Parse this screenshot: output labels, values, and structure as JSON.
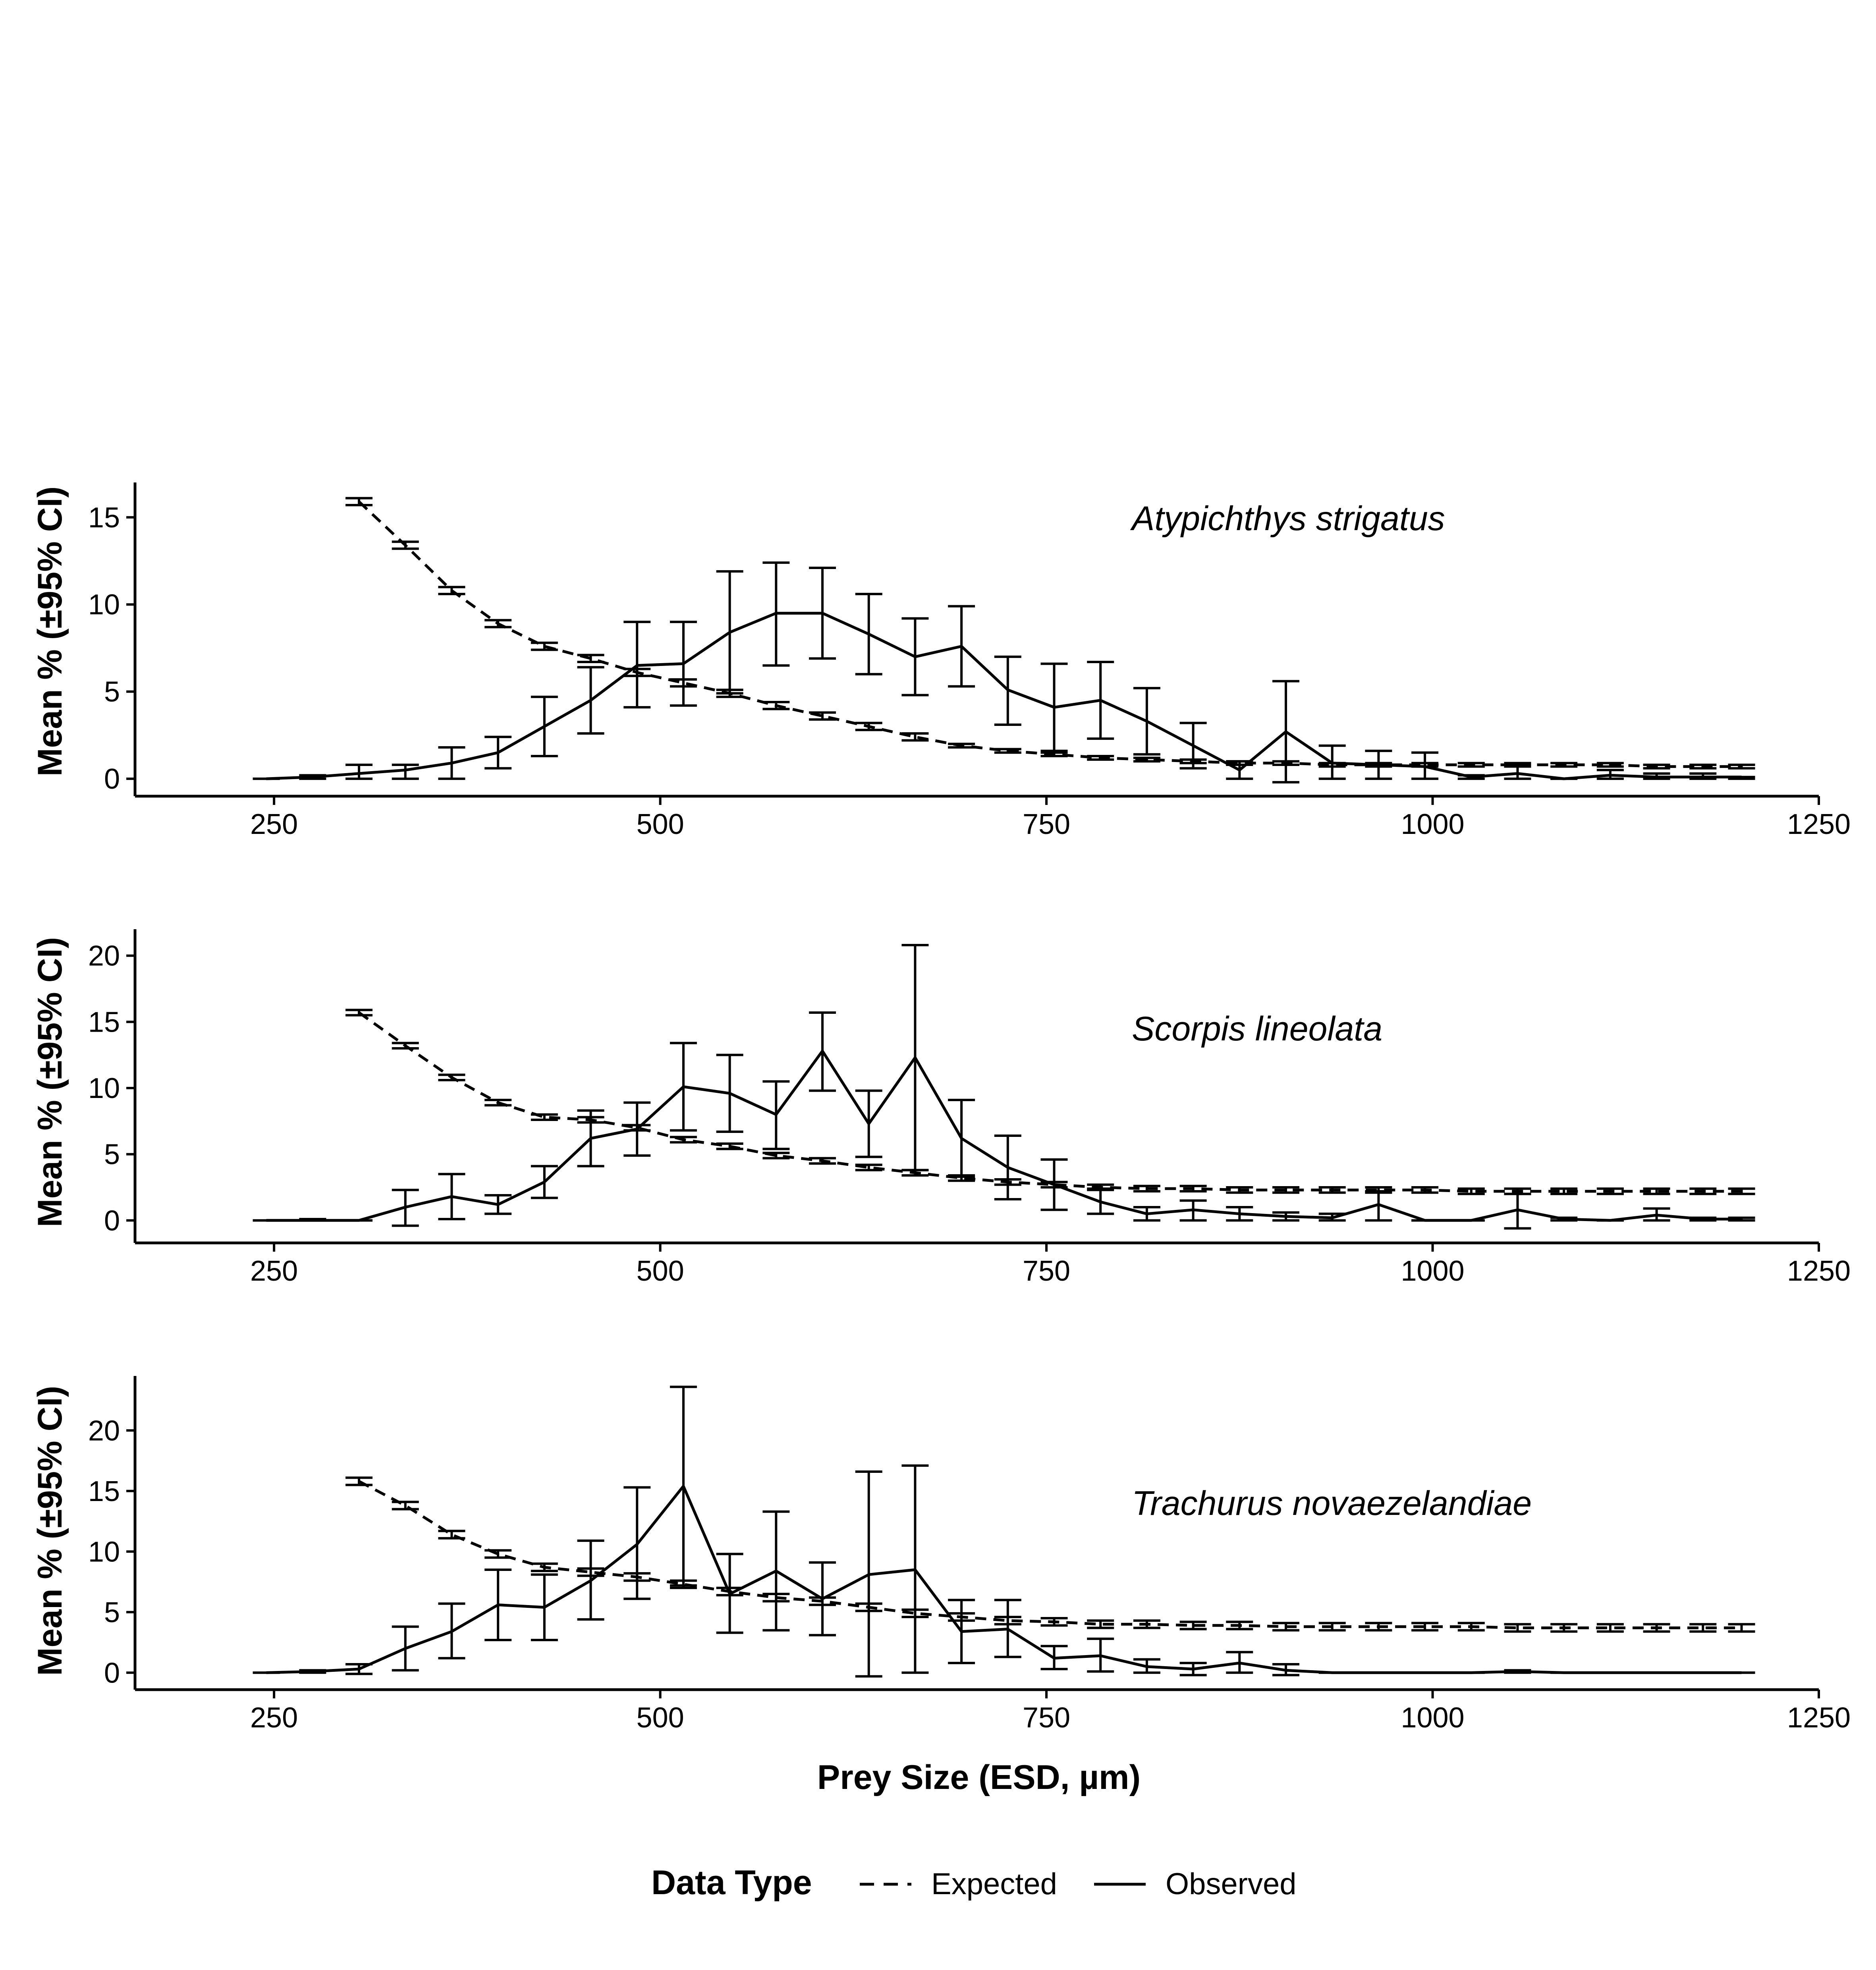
{
  "axis_titles": {
    "y": "Mean % (±95% CI)",
    "x": "Prey Size (ESD, µm)"
  },
  "legend": {
    "title": "Data Type",
    "items": [
      {
        "label": "Expected",
        "linetype": "dashed"
      },
      {
        "label": "Observed",
        "linetype": "solid"
      }
    ]
  },
  "chart_data": [
    {
      "type": "line",
      "title": "Atypichthys strigatus",
      "xlabel": "",
      "ylabel": "Mean % (±95% CI)",
      "xlim": [
        160,
        1250
      ],
      "ylim": [
        -1,
        17
      ],
      "x_ticks": [
        250,
        500,
        750,
        1000,
        1250
      ],
      "y_ticks": [
        0,
        5,
        10,
        15
      ],
      "grid": false,
      "series": [
        {
          "name": "Observed",
          "x": [
            245,
            275,
            305,
            335,
            365,
            395,
            425,
            455,
            485,
            515,
            545,
            575,
            605,
            635,
            665,
            695,
            725,
            755,
            785,
            815,
            845,
            875,
            905,
            935,
            965,
            995,
            1025,
            1055,
            1085,
            1115,
            1145,
            1175,
            1200
          ],
          "y": [
            0,
            0.1,
            0.3,
            0.5,
            0.9,
            1.5,
            3.0,
            4.5,
            6.5,
            6.6,
            8.4,
            9.5,
            9.5,
            8.3,
            7.0,
            7.6,
            5.1,
            4.1,
            4.5,
            3.3,
            1.9,
            0.5,
            2.7,
            0.9,
            0.8,
            0.7,
            0.1,
            0.3,
            0.0,
            0.2,
            0.1,
            0.1,
            0.1
          ],
          "lo": [
            0,
            0.0,
            0.0,
            0.0,
            0.0,
            0.6,
            1.3,
            2.6,
            4.1,
            4.2,
            4.9,
            6.5,
            6.9,
            6.0,
            4.8,
            5.3,
            3.1,
            1.6,
            2.3,
            1.4,
            0.6,
            0.0,
            -0.2,
            0.0,
            0.0,
            0.0,
            0.0,
            0.0,
            0.0,
            0.0,
            0.0,
            0.0,
            0.0
          ],
          "hi": [
            0,
            0.2,
            0.8,
            0.8,
            1.8,
            2.4,
            4.7,
            6.4,
            9.0,
            9.0,
            11.9,
            12.4,
            12.1,
            10.6,
            9.2,
            9.9,
            7.0,
            6.6,
            6.7,
            5.2,
            3.2,
            1.0,
            5.6,
            1.9,
            1.6,
            1.5,
            0.2,
            0.8,
            0.0,
            0.5,
            0.3,
            0.3,
            0.1
          ]
        },
        {
          "name": "Expected",
          "x": [
            305,
            335,
            365,
            395,
            425,
            455,
            485,
            515,
            545,
            575,
            605,
            635,
            665,
            695,
            725,
            755,
            785,
            815,
            845,
            875,
            905,
            935,
            965,
            995,
            1025,
            1055,
            1085,
            1115,
            1145,
            1175,
            1200
          ],
          "y": [
            15.9,
            13.4,
            10.8,
            8.9,
            7.6,
            6.9,
            6.1,
            5.5,
            4.9,
            4.2,
            3.6,
            3.0,
            2.4,
            1.9,
            1.6,
            1.4,
            1.2,
            1.1,
            1.0,
            0.9,
            0.9,
            0.8,
            0.8,
            0.8,
            0.8,
            0.8,
            0.8,
            0.8,
            0.7,
            0.7,
            0.7
          ],
          "lo": [
            15.7,
            13.2,
            10.6,
            8.7,
            7.4,
            6.7,
            5.9,
            5.3,
            4.7,
            4.0,
            3.4,
            2.8,
            2.2,
            1.8,
            1.5,
            1.3,
            1.1,
            1.0,
            0.9,
            0.8,
            0.8,
            0.7,
            0.7,
            0.7,
            0.7,
            0.7,
            0.7,
            0.7,
            0.6,
            0.6,
            0.6
          ],
          "hi": [
            16.1,
            13.6,
            11.0,
            9.1,
            7.8,
            7.1,
            6.3,
            5.7,
            5.1,
            4.4,
            3.8,
            3.2,
            2.6,
            2.0,
            1.7,
            1.5,
            1.3,
            1.2,
            1.1,
            1.0,
            1.0,
            0.9,
            0.9,
            0.9,
            0.9,
            0.9,
            0.9,
            0.9,
            0.8,
            0.8,
            0.8
          ]
        }
      ]
    },
    {
      "type": "line",
      "title": "Scorpis lineolata",
      "xlabel": "",
      "ylabel": "Mean % (±95% CI)",
      "xlim": [
        160,
        1250
      ],
      "ylim": [
        -1.7,
        22
      ],
      "x_ticks": [
        250,
        500,
        750,
        1000,
        1250
      ],
      "y_ticks": [
        0,
        5,
        10,
        15,
        20
      ],
      "grid": false,
      "series": [
        {
          "name": "Observed",
          "x": [
            245,
            275,
            305,
            335,
            365,
            395,
            425,
            455,
            485,
            515,
            545,
            575,
            605,
            635,
            665,
            695,
            725,
            755,
            785,
            815,
            845,
            875,
            905,
            935,
            965,
            995,
            1025,
            1055,
            1085,
            1115,
            1145,
            1175,
            1200
          ],
          "y": [
            0,
            0,
            0,
            1.0,
            1.8,
            1.2,
            2.9,
            6.2,
            6.9,
            10.1,
            9.6,
            8.0,
            12.8,
            7.3,
            12.3,
            6.2,
            4.0,
            2.7,
            1.4,
            0.5,
            0.8,
            0.5,
            0.3,
            0.2,
            1.2,
            0,
            0,
            0.8,
            0.1,
            0,
            0.4,
            0.1,
            0.1
          ],
          "lo": [
            0,
            0,
            0,
            -0.4,
            0.1,
            0.5,
            1.7,
            4.1,
            4.9,
            6.8,
            6.7,
            5.4,
            9.8,
            4.8,
            3.8,
            3.3,
            1.6,
            0.8,
            0.5,
            0.0,
            0.0,
            0.0,
            0.0,
            0.0,
            0.0,
            0,
            0,
            -0.6,
            0.0,
            0,
            0.0,
            0.0,
            0.0
          ],
          "hi": [
            0,
            0.1,
            0,
            2.3,
            3.5,
            1.9,
            4.1,
            8.3,
            8.9,
            13.4,
            12.5,
            10.5,
            15.7,
            9.8,
            20.8,
            9.1,
            6.4,
            4.6,
            2.4,
            1.0,
            1.5,
            1.0,
            0.6,
            0.5,
            2.2,
            0,
            0,
            2.0,
            0.2,
            0,
            0.9,
            0.2,
            0.2
          ]
        },
        {
          "name": "Expected",
          "x": [
            305,
            335,
            365,
            395,
            425,
            455,
            485,
            515,
            545,
            575,
            605,
            635,
            665,
            695,
            725,
            755,
            785,
            815,
            845,
            875,
            905,
            935,
            965,
            995,
            1025,
            1055,
            1085,
            1115,
            1145,
            1175,
            1200
          ],
          "y": [
            15.7,
            13.2,
            10.8,
            8.9,
            7.8,
            7.6,
            7.0,
            6.1,
            5.6,
            4.9,
            4.5,
            4.0,
            3.6,
            3.2,
            2.9,
            2.7,
            2.5,
            2.4,
            2.4,
            2.3,
            2.3,
            2.3,
            2.3,
            2.3,
            2.2,
            2.2,
            2.2,
            2.2,
            2.2,
            2.2,
            2.2
          ],
          "lo": [
            15.5,
            13.0,
            10.6,
            8.7,
            7.6,
            7.4,
            6.8,
            5.9,
            5.4,
            4.7,
            4.3,
            3.8,
            3.4,
            3.0,
            2.7,
            2.5,
            2.3,
            2.2,
            2.2,
            2.1,
            2.1,
            2.1,
            2.1,
            2.1,
            2.0,
            2.0,
            2.0,
            2.0,
            2.0,
            2.0,
            2.0
          ],
          "hi": [
            15.9,
            13.4,
            11.0,
            9.1,
            8.0,
            7.8,
            7.2,
            6.3,
            5.8,
            5.1,
            4.7,
            4.2,
            3.8,
            3.4,
            3.1,
            2.9,
            2.7,
            2.6,
            2.6,
            2.5,
            2.5,
            2.5,
            2.5,
            2.5,
            2.4,
            2.4,
            2.4,
            2.4,
            2.4,
            2.4,
            2.4
          ]
        }
      ]
    },
    {
      "type": "line",
      "title": "Trachurus novaezelandiae",
      "xlabel": "Prey Size (ESD, µm)",
      "ylabel": "Mean % (±95% CI)",
      "xlim": [
        160,
        1250
      ],
      "ylim": [
        -1.4,
        24.5
      ],
      "x_ticks": [
        250,
        500,
        750,
        1000,
        1250
      ],
      "y_ticks": [
        0,
        5,
        10,
        15,
        20
      ],
      "grid": false,
      "series": [
        {
          "name": "Observed",
          "x": [
            245,
            275,
            305,
            335,
            365,
            395,
            425,
            455,
            485,
            515,
            545,
            575,
            605,
            635,
            665,
            695,
            725,
            755,
            785,
            815,
            845,
            875,
            905,
            935,
            965,
            995,
            1025,
            1055,
            1085,
            1115,
            1145,
            1175,
            1200
          ],
          "y": [
            0,
            0.1,
            0.3,
            2.0,
            3.4,
            5.6,
            5.4,
            7.6,
            10.6,
            15.4,
            6.5,
            8.4,
            6.1,
            8.1,
            8.5,
            3.4,
            3.6,
            1.2,
            1.4,
            0.5,
            0.3,
            0.8,
            0.2,
            0,
            0,
            0,
            0,
            0.1,
            0,
            0,
            0,
            0,
            0
          ],
          "lo": [
            0,
            0.0,
            -0.1,
            0.2,
            1.2,
            2.7,
            2.7,
            4.4,
            6.1,
            7.2,
            3.3,
            3.5,
            3.1,
            -0.3,
            0.0,
            0.8,
            1.3,
            0.3,
            0.1,
            0.0,
            -0.2,
            0.0,
            -0.2,
            0,
            0,
            0,
            0,
            0.0,
            0,
            0,
            0,
            0,
            0
          ],
          "hi": [
            0,
            0.2,
            0.7,
            3.8,
            5.7,
            8.5,
            8.1,
            10.9,
            15.3,
            23.6,
            9.8,
            13.3,
            9.1,
            16.6,
            17.1,
            6.0,
            6.0,
            2.2,
            2.8,
            1.1,
            0.8,
            1.7,
            0.7,
            0,
            0,
            0,
            0,
            0.2,
            0,
            0,
            0,
            0,
            0
          ]
        },
        {
          "name": "Expected",
          "x": [
            305,
            335,
            365,
            395,
            425,
            455,
            485,
            515,
            545,
            575,
            605,
            635,
            665,
            695,
            725,
            755,
            785,
            815,
            845,
            875,
            905,
            935,
            965,
            995,
            1025,
            1055,
            1085,
            1115,
            1145,
            1175,
            1200
          ],
          "y": [
            15.8,
            13.8,
            11.4,
            9.8,
            8.7,
            8.3,
            7.9,
            7.3,
            6.7,
            6.2,
            5.9,
            5.4,
            4.9,
            4.6,
            4.3,
            4.2,
            4.0,
            4.0,
            3.9,
            3.9,
            3.8,
            3.8,
            3.8,
            3.8,
            3.8,
            3.7,
            3.7,
            3.7,
            3.7,
            3.7,
            3.7
          ],
          "lo": [
            15.5,
            13.5,
            11.1,
            9.5,
            8.4,
            8.0,
            7.6,
            7.0,
            6.4,
            5.9,
            5.6,
            5.1,
            4.6,
            4.3,
            4.0,
            3.9,
            3.7,
            3.7,
            3.6,
            3.6,
            3.5,
            3.5,
            3.5,
            3.5,
            3.5,
            3.4,
            3.4,
            3.4,
            3.4,
            3.4,
            3.4
          ],
          "hi": [
            16.1,
            14.1,
            11.7,
            10.1,
            9.0,
            8.6,
            8.2,
            7.6,
            7.0,
            6.5,
            6.2,
            5.7,
            5.2,
            4.9,
            4.6,
            4.5,
            4.3,
            4.3,
            4.2,
            4.2,
            4.1,
            4.1,
            4.1,
            4.1,
            4.1,
            4.0,
            4.0,
            4.0,
            4.0,
            4.0,
            4.0
          ]
        }
      ]
    }
  ]
}
